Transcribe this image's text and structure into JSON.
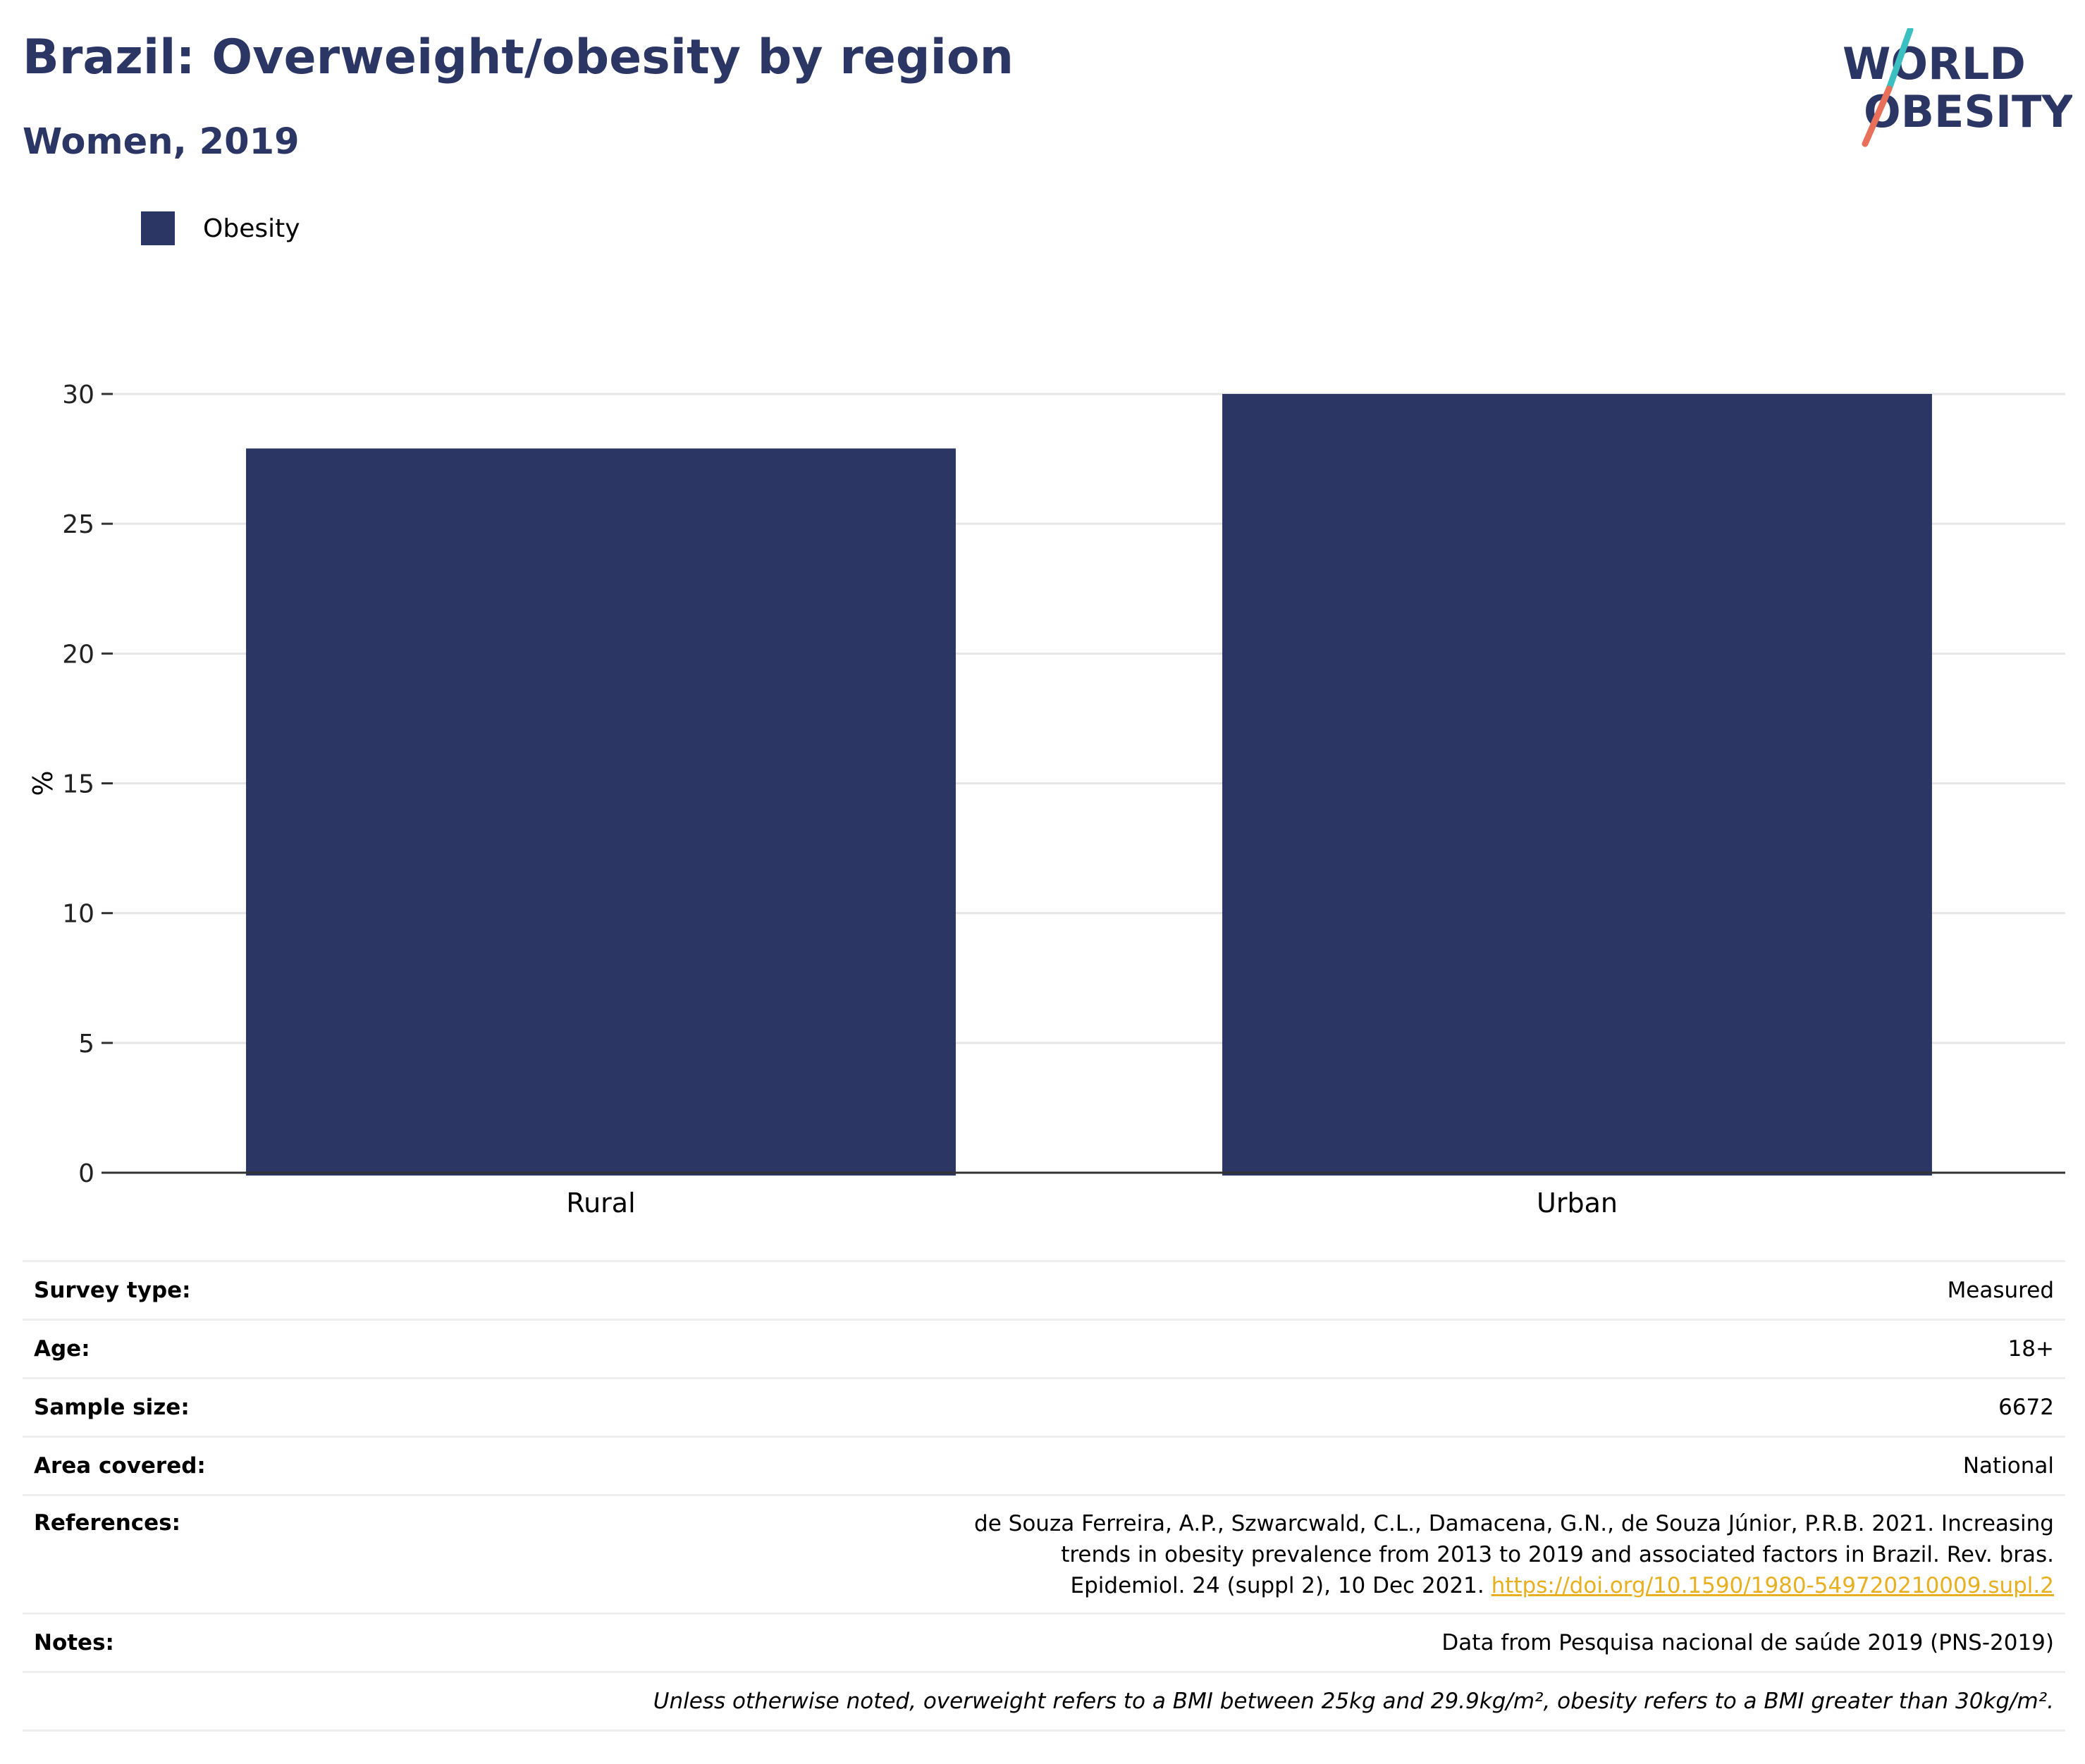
{
  "header": {
    "title": "Brazil: Overweight/obesity by region",
    "subtitle": "Women, 2019",
    "logo_line1": "WORLD",
    "logo_line2": "OBESITY"
  },
  "colors": {
    "bar": "#2b3664",
    "title": "#2b3664",
    "logo_slash_top": "#3bbfc1",
    "logo_slash_bottom": "#e8705a",
    "link": "#e8b020",
    "grid": "#e6e6e6",
    "axis": "#333333"
  },
  "legend": {
    "label": "Obesity"
  },
  "chart_data": {
    "type": "bar",
    "categories": [
      "Rural",
      "Urban"
    ],
    "series": [
      {
        "name": "Obesity",
        "values": [
          27.9,
          30.0
        ]
      }
    ],
    "ylabel": "%",
    "xlabel": "",
    "ylim": [
      0,
      30
    ],
    "yticks": [
      0,
      5,
      10,
      15,
      20,
      25,
      30
    ],
    "grid": true,
    "legend_position": "top-left"
  },
  "meta": {
    "survey_type": {
      "label": "Survey type:",
      "value": "Measured"
    },
    "age": {
      "label": "Age:",
      "value": "18+"
    },
    "sample_size": {
      "label": "Sample size:",
      "value": "6672"
    },
    "area": {
      "label": "Area covered:",
      "value": "National"
    },
    "references": {
      "label": "References:",
      "text": "de Souza Ferreira, A.P., Szwarcwald, C.L., Damacena, G.N., de Souza Júnior, P.R.B. 2021. Increasing trends in obesity prevalence from 2013 to 2019 and associated factors in Brazil. Rev. bras. Epidemiol. 24 (suppl 2), 10 Dec 2021.",
      "link": "https://doi.org/10.1590/1980-549720210009.supl.2"
    },
    "notes": {
      "label": "Notes:",
      "value": "Data from Pesquisa nacional de saúde 2019 (PNS-2019)"
    },
    "footnote": "Unless otherwise noted, overweight refers to a BMI between 25kg and 29.9kg/m², obesity refers to a BMI greater than 30kg/m²."
  }
}
